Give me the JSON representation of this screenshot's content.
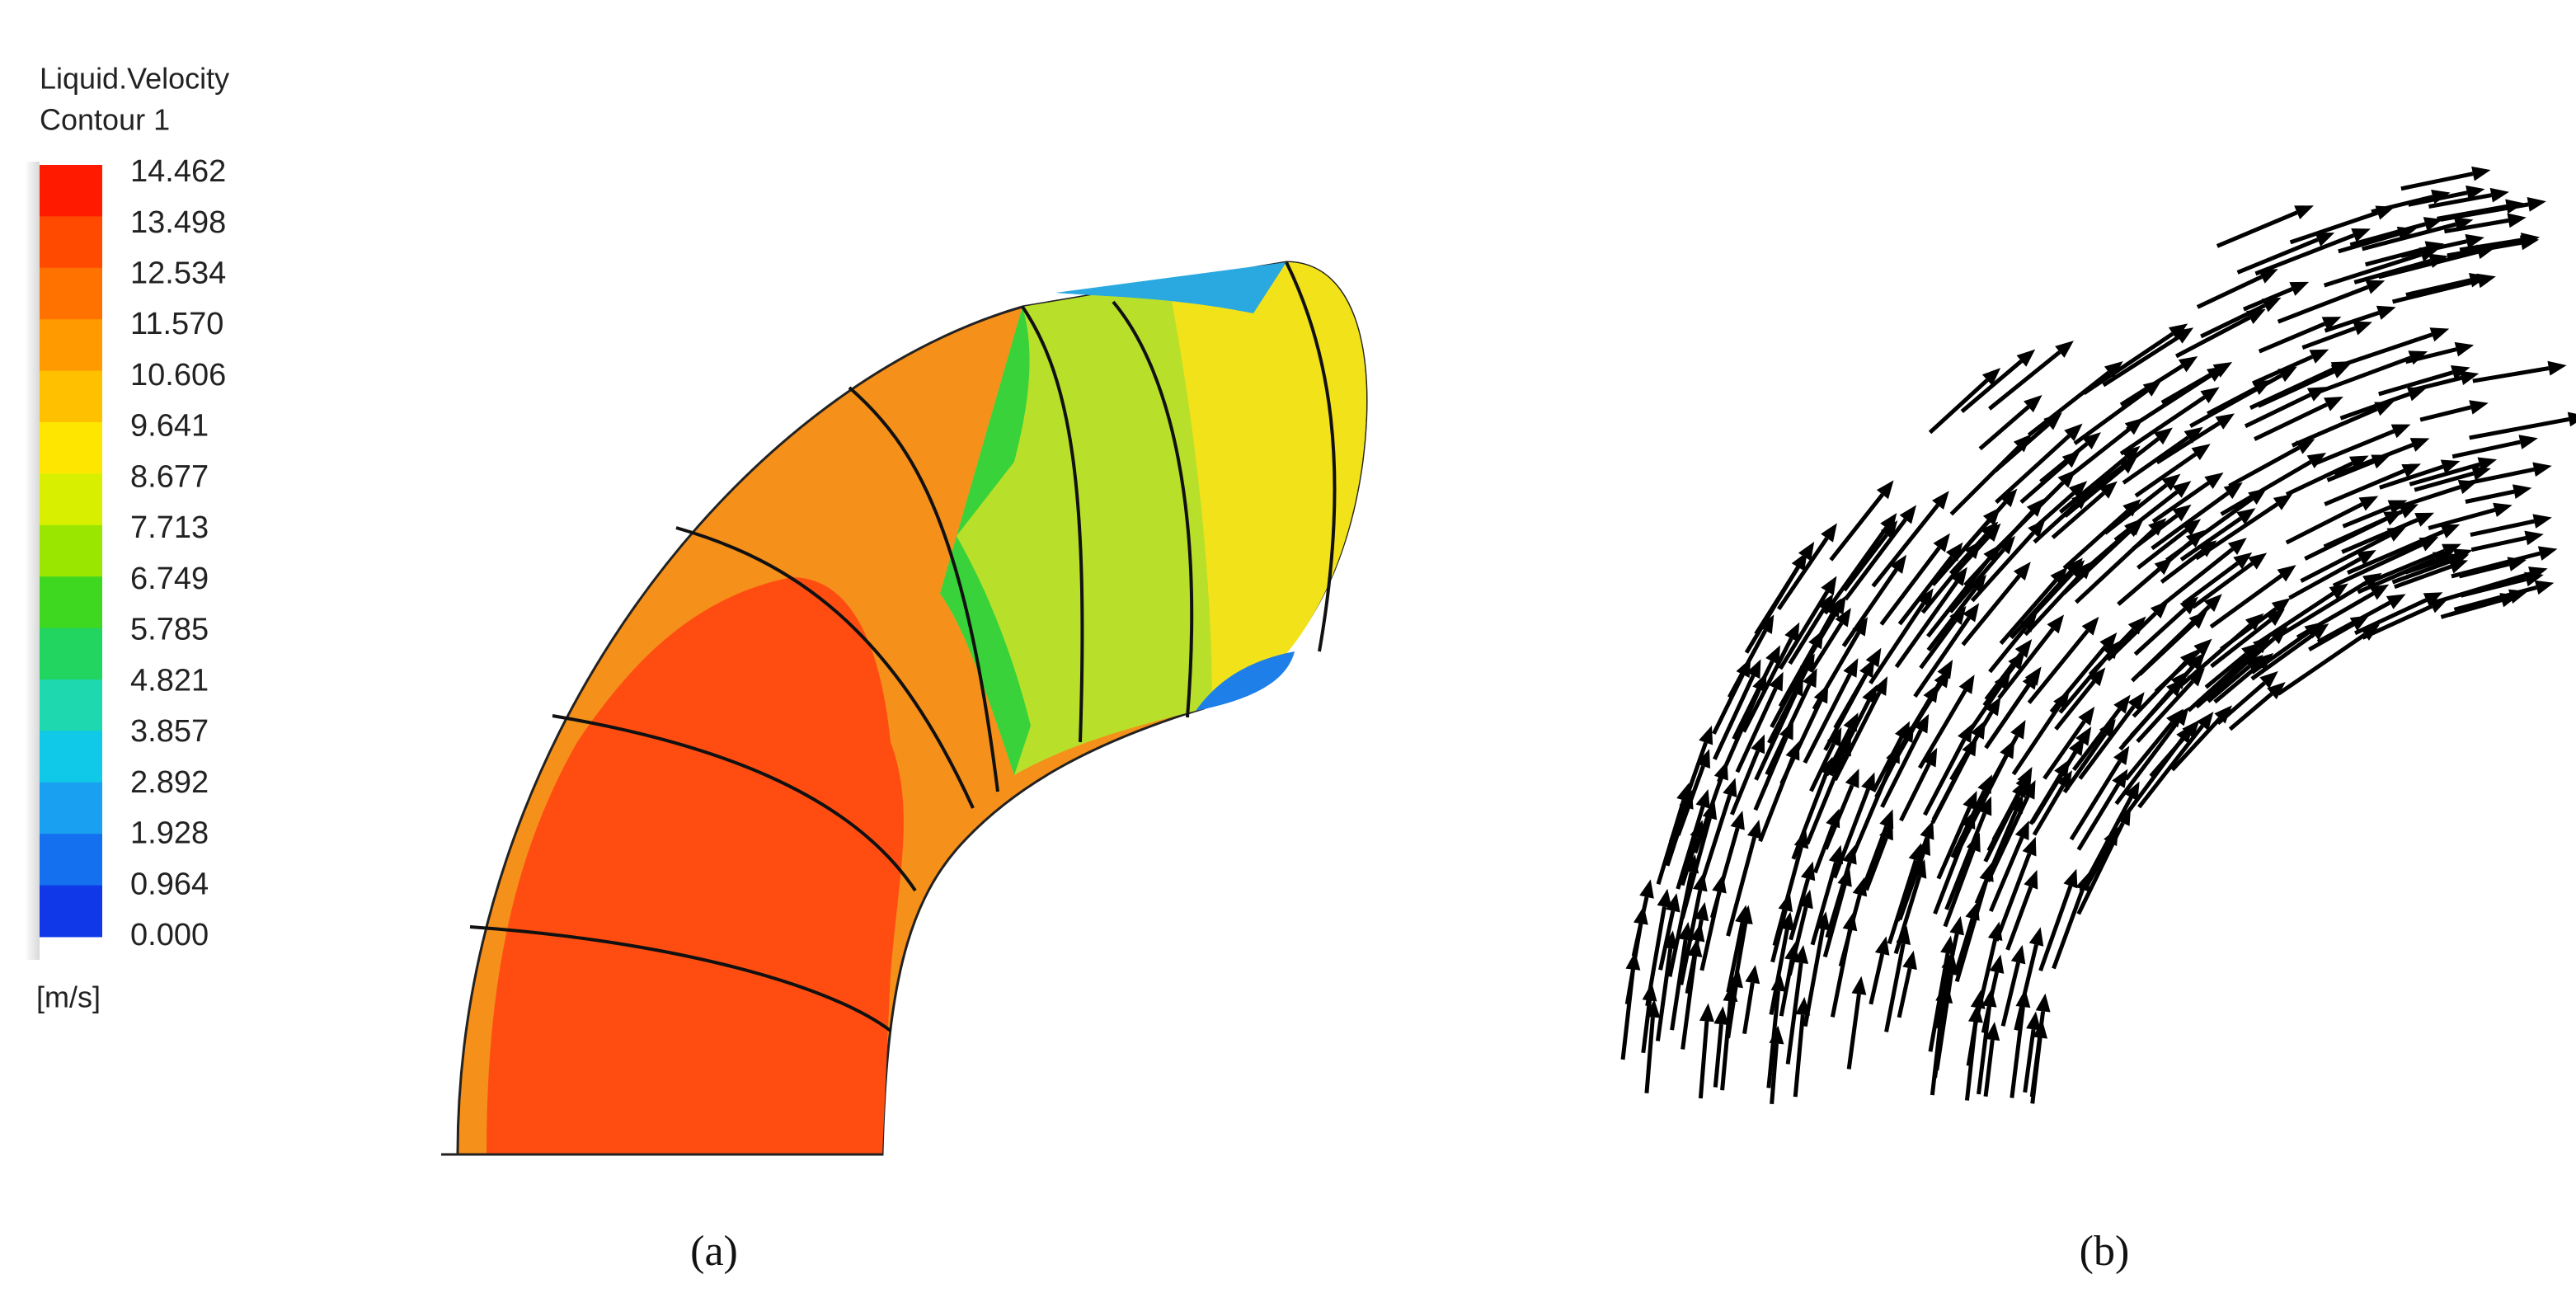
{
  "legend": {
    "title": "Liquid.Velocity",
    "subtitle": "Contour 1",
    "ticks": [
      "14.462",
      "13.498",
      "12.534",
      "11.570",
      "10.606",
      "9.641",
      "8.677",
      "7.713",
      "6.749",
      "5.785",
      "4.821",
      "3.857",
      "2.892",
      "1.928",
      "0.964",
      "0.000"
    ],
    "unit": "[m/s]"
  },
  "panels": [
    {
      "label": "(a)"
    },
    {
      "label": "(b)"
    }
  ]
}
